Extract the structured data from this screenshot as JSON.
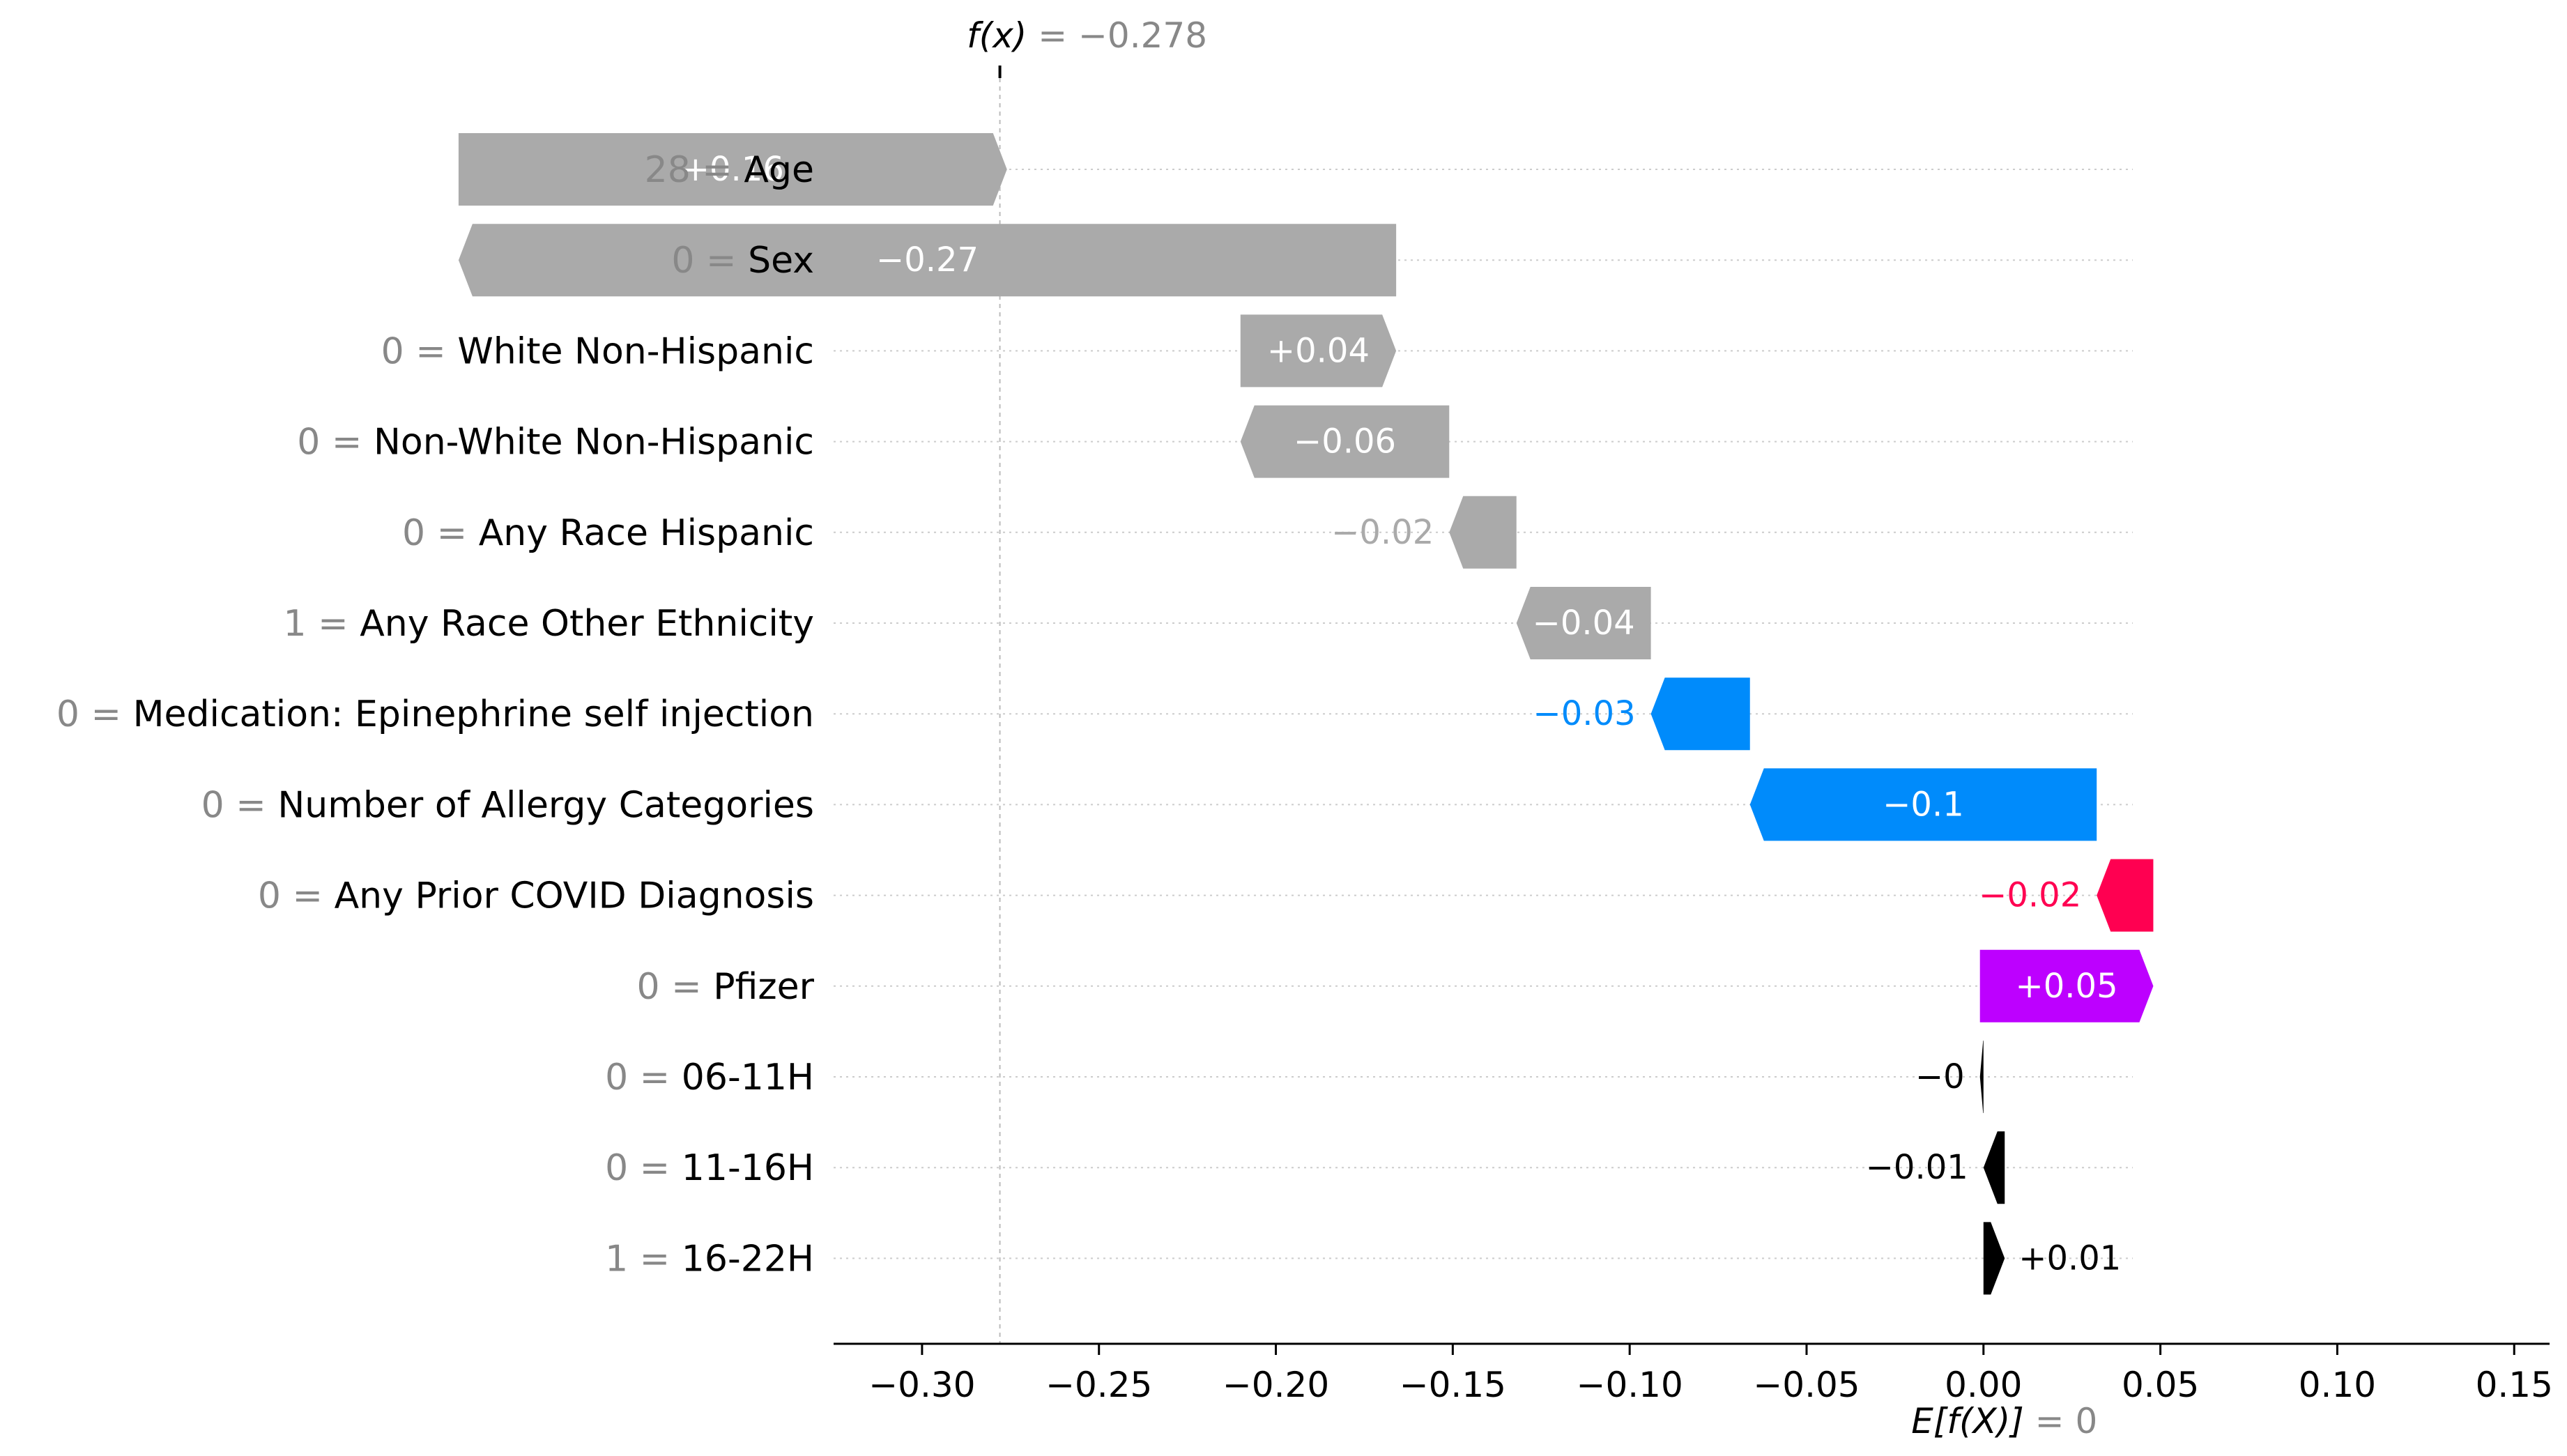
{
  "chart_data": {
    "type": "bar",
    "subtype": "waterfall",
    "orientation": "horizontal",
    "fx": {
      "label": "f(x)",
      "value_text": "−0.278",
      "value": -0.278
    },
    "efx": {
      "label": "E[f(X)]",
      "value_text": "0",
      "value": 0
    },
    "xlim": [
      -0.325,
      0.16
    ],
    "xticks": [
      {
        "value": -0.3,
        "label": "−0.30"
      },
      {
        "value": -0.25,
        "label": "−0.25"
      },
      {
        "value": -0.2,
        "label": "−0.20"
      },
      {
        "value": -0.15,
        "label": "−0.15"
      },
      {
        "value": -0.1,
        "label": "−0.10"
      },
      {
        "value": -0.05,
        "label": "−0.05"
      },
      {
        "value": 0.0,
        "label": "0.00"
      },
      {
        "value": 0.05,
        "label": "0.05"
      },
      {
        "value": 0.1,
        "label": "0.10"
      },
      {
        "value": 0.15,
        "label": "0.15"
      }
    ],
    "features": [
      {
        "value_text": "28",
        "name": "Age",
        "contribution": 0.155,
        "label": "+0.16",
        "color": "#aaaaaa",
        "label_color": "#ffffff",
        "label_pos": "inside"
      },
      {
        "value_text": "0",
        "name": "Sex",
        "contribution": -0.265,
        "label": "−0.27",
        "color": "#aaaaaa",
        "label_color": "#ffffff",
        "label_pos": "inside"
      },
      {
        "value_text": "0",
        "name": "White Non-Hispanic",
        "contribution": 0.044,
        "label": "+0.04",
        "color": "#aaaaaa",
        "label_color": "#ffffff",
        "label_pos": "inside"
      },
      {
        "value_text": "0",
        "name": "Non-White Non-Hispanic",
        "contribution": -0.059,
        "label": "−0.06",
        "color": "#aaaaaa",
        "label_color": "#ffffff",
        "label_pos": "inside"
      },
      {
        "value_text": "0",
        "name": "Any Race Hispanic",
        "contribution": -0.019,
        "label": "−0.02",
        "color": "#aaaaaa",
        "label_color": "#aaaaaa",
        "label_pos": "outside"
      },
      {
        "value_text": "1",
        "name": "Any Race Other Ethnicity",
        "contribution": -0.038,
        "label": "−0.04",
        "color": "#aaaaaa",
        "label_color": "#ffffff",
        "label_pos": "inside"
      },
      {
        "value_text": "0",
        "name": "Medication: Epinephrine self injection",
        "contribution": -0.028,
        "label": "−0.03",
        "color": "#008bfb",
        "label_color": "#008bfb",
        "label_pos": "outside"
      },
      {
        "value_text": "0",
        "name": "Number of Allergy Categories",
        "contribution": -0.098,
        "label": "−0.1",
        "color": "#008bfb",
        "label_color": "#ffffff",
        "label_pos": "inside"
      },
      {
        "value_text": "0",
        "name": "Any Prior COVID Diagnosis",
        "contribution": -0.016,
        "label": "−0.02",
        "color": "#ff0051",
        "label_color": "#ff0051",
        "label_pos": "outside"
      },
      {
        "value_text": "0",
        "name": "Pfizer",
        "contribution": 0.049,
        "label": "+0.05",
        "color": "#bd00ff",
        "label_color": "#ffffff",
        "label_pos": "inside"
      },
      {
        "value_text": "0",
        "name": "06-11H",
        "contribution": -0.001,
        "label": "−0",
        "color": "#000000",
        "label_color": "#000000",
        "label_pos": "outside"
      },
      {
        "value_text": "0",
        "name": "11-16H",
        "contribution": -0.006,
        "label": "−0.01",
        "color": "#000000",
        "label_color": "#000000",
        "label_pos": "outside"
      },
      {
        "value_text": "1",
        "name": "16-22H",
        "contribution": 0.006,
        "label": "+0.01",
        "color": "#000000",
        "label_color": "#000000",
        "label_pos": "outside"
      }
    ]
  }
}
